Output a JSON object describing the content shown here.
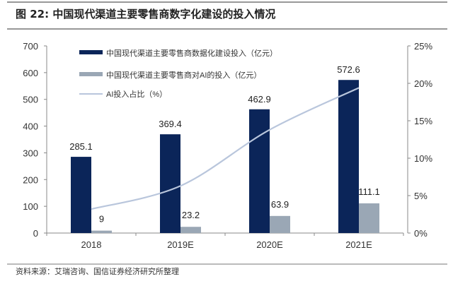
{
  "figure_title": "图 22:  中国现代渠道主要零售商数字化建设的投入情况",
  "source": "资料来源：艾瑞咨询、国信证券经济研究所整理",
  "chart_data": {
    "type": "bar+line",
    "categories": [
      "2018",
      "2019E",
      "2020E",
      "2021E"
    ],
    "series": [
      {
        "name": "中国现代渠道主要零售商数据化建设投入（亿元）",
        "type": "bar",
        "axis": "left",
        "color": "#0b2559",
        "values": [
          285.1,
          369.4,
          462.9,
          572.6
        ],
        "labels": [
          "285.1",
          "369.4",
          "462.9",
          "572.6"
        ]
      },
      {
        "name": "中国现代渠道主要零售商对AI的投入（亿元）",
        "type": "bar",
        "axis": "left",
        "color": "#9aa7b5",
        "values": [
          9,
          23.2,
          63.9,
          111.1
        ],
        "labels": [
          "9",
          "23.2",
          "63.9",
          "111.1"
        ]
      },
      {
        "name": "AI投入占比（%）",
        "type": "line",
        "axis": "right",
        "color": "#b9c6dc",
        "values": [
          3.2,
          6.3,
          13.8,
          19.4
        ]
      }
    ],
    "left_axis": {
      "ylim": [
        0,
        700
      ],
      "ticks": [
        "0",
        "100",
        "200",
        "300",
        "400",
        "500",
        "600",
        "700"
      ]
    },
    "right_axis": {
      "ylim": [
        0,
        25
      ],
      "ticks": [
        "0%",
        "5%",
        "10%",
        "15%",
        "20%",
        "25%"
      ]
    },
    "grid": false,
    "legend_position": "top-left"
  }
}
